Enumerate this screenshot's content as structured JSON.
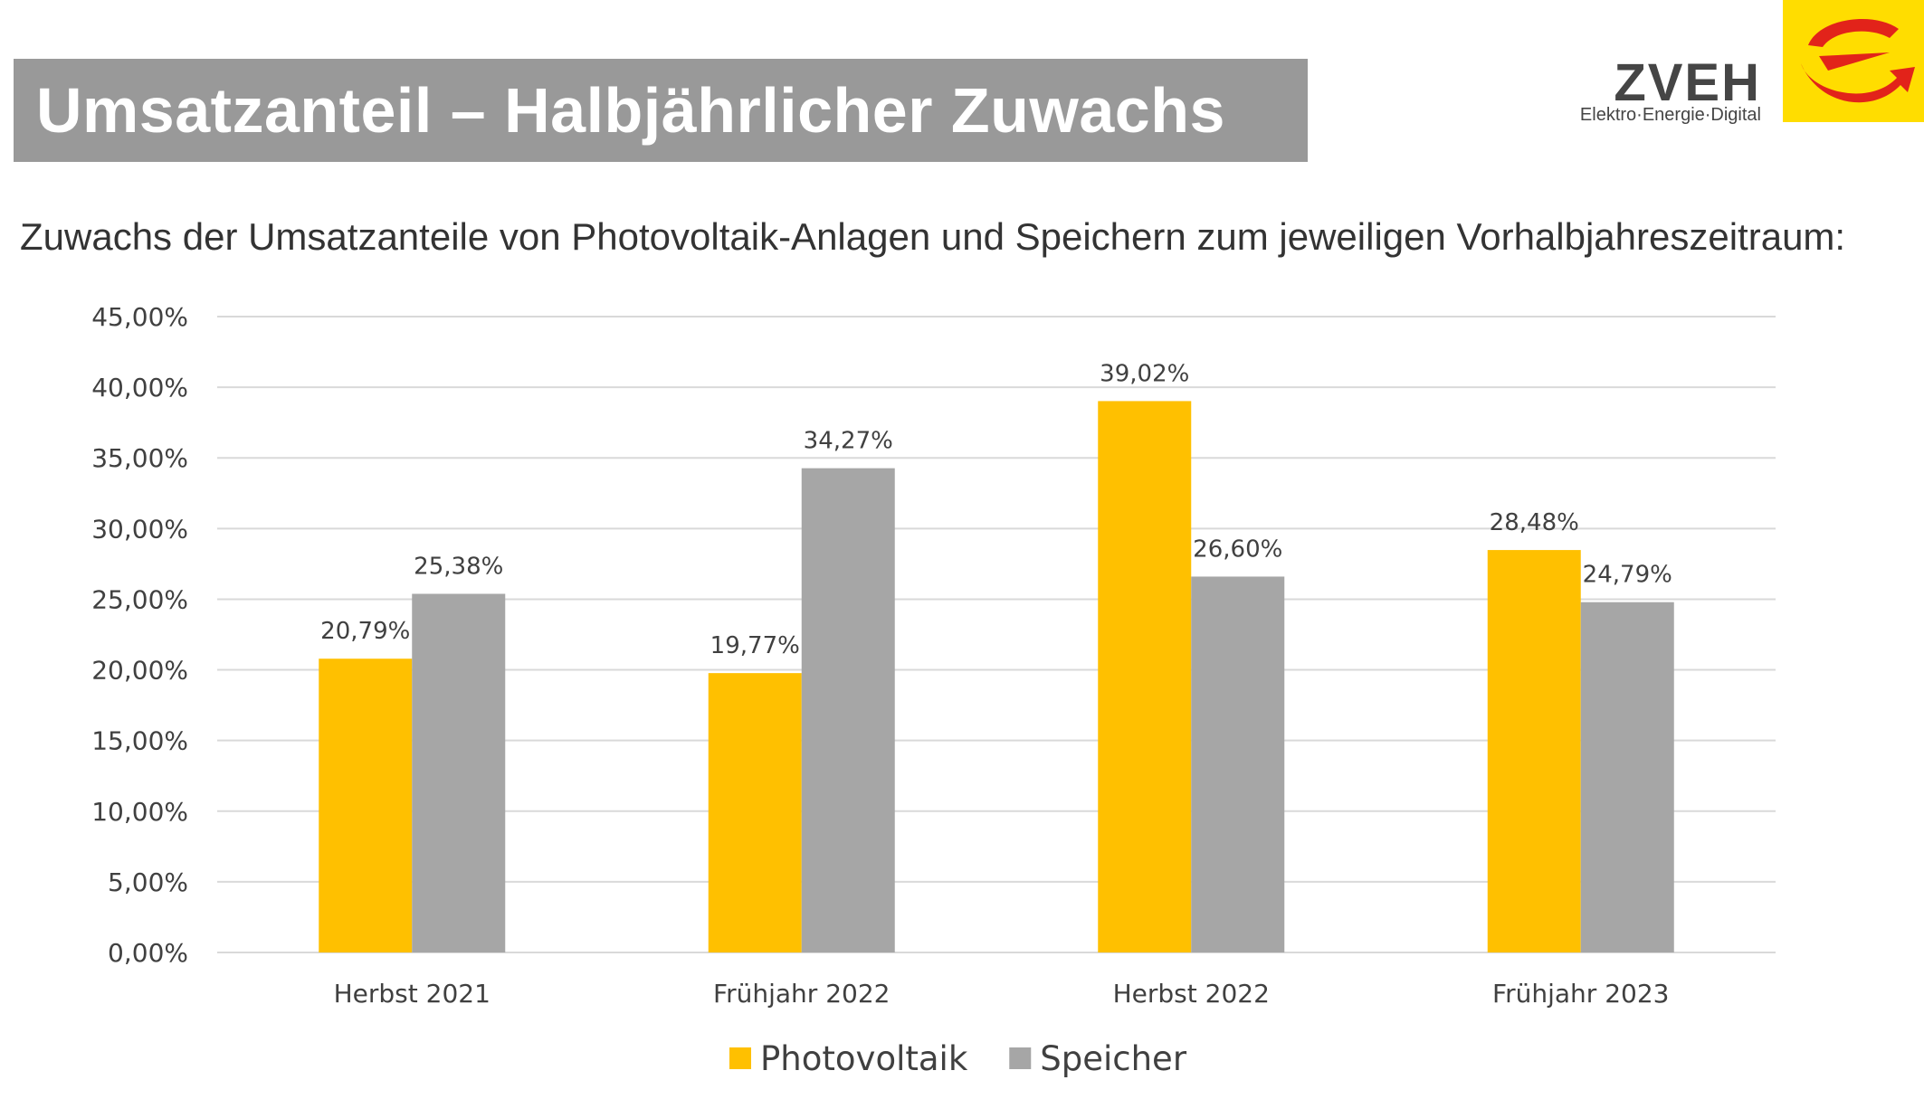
{
  "header": {
    "title": "Umsatzanteil – Halbjährlicher Zuwachs",
    "logo_name": "ZVEH",
    "logo_tagline": "Elektro·Energie·Digital",
    "logo_icon": "zveh-swoosh-icon"
  },
  "subtitle": "Zuwachs der Umsatzanteile von Photovoltaik-Anlagen und Speichern zum jeweiligen Vorhalbjahreszeitraum:",
  "colors": {
    "banner": "#999999",
    "logo_yellow": "#ffdd00",
    "logo_red": "#e2231a",
    "photovoltaik": "#ffc000",
    "speicher": "#a6a6a6",
    "grid": "#d9d9d9"
  },
  "chart_data": {
    "type": "bar",
    "categories": [
      "Herbst 2021",
      "Frühjahr 2022",
      "Herbst 2022",
      "Frühjahr 2023"
    ],
    "series": [
      {
        "name": "Photovoltaik",
        "values": [
          20.79,
          19.77,
          39.02,
          28.48
        ],
        "labels": [
          "20,79%",
          "19,77%",
          "39,02%",
          "28,48%"
        ]
      },
      {
        "name": "Speicher",
        "values": [
          25.38,
          34.27,
          26.6,
          24.79
        ],
        "labels": [
          "25,38%",
          "34,27%",
          "26,60%",
          "24,79%"
        ]
      }
    ],
    "ylim": [
      0,
      45
    ],
    "yticks": [
      0,
      5,
      10,
      15,
      20,
      25,
      30,
      35,
      40,
      45
    ],
    "ytick_labels": [
      "0,00%",
      "5,00%",
      "10,00%",
      "15,00%",
      "20,00%",
      "25,00%",
      "30,00%",
      "35,00%",
      "40,00%",
      "45,00%"
    ],
    "grid": true,
    "legend": "bottom-center"
  }
}
